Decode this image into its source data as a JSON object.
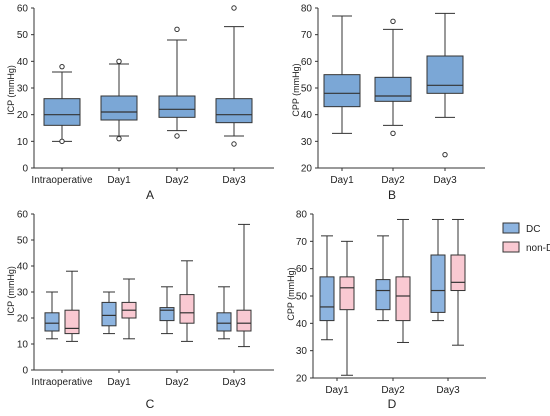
{
  "colors": {
    "box_fill": "#7ba7d6",
    "box_fill_dc": "#8db4e0",
    "box_fill_nondc": "#f9c9d2",
    "line": "#333333"
  },
  "chart_data": [
    {
      "panel": "A",
      "type": "boxplot",
      "ylabel": "ICP (mmHg)",
      "ylim": [
        0,
        60
      ],
      "yticks": [
        0,
        10,
        20,
        30,
        40,
        50,
        60
      ],
      "categories": [
        "Intraoperative",
        "Day1",
        "Day2",
        "Day3"
      ],
      "series": [
        {
          "boxes": [
            {
              "whisker_low": 10,
              "q1": 16,
              "median": 20,
              "q3": 26,
              "whisker_high": 36,
              "outliers": [
                10,
                38
              ]
            },
            {
              "whisker_low": 12,
              "q1": 18,
              "median": 21,
              "q3": 27,
              "whisker_high": 39,
              "outliers": [
                11,
                40
              ]
            },
            {
              "whisker_low": 14,
              "q1": 19,
              "median": 22,
              "q3": 27,
              "whisker_high": 48,
              "outliers": [
                12,
                52
              ]
            },
            {
              "whisker_low": 12,
              "q1": 17,
              "median": 20,
              "q3": 26,
              "whisker_high": 53,
              "outliers": [
                9,
                60
              ]
            }
          ]
        }
      ]
    },
    {
      "panel": "B",
      "type": "boxplot",
      "ylabel": "CPP (mmHg)",
      "ylim": [
        20,
        80
      ],
      "yticks": [
        20,
        30,
        40,
        50,
        60,
        70,
        80
      ],
      "categories": [
        "Day1",
        "Day2",
        "Day3"
      ],
      "series": [
        {
          "boxes": [
            {
              "whisker_low": 33,
              "q1": 43,
              "median": 48,
              "q3": 55,
              "whisker_high": 77,
              "outliers": []
            },
            {
              "whisker_low": 36,
              "q1": 45,
              "median": 47,
              "q3": 54,
              "whisker_high": 72,
              "outliers": [
                33,
                75
              ]
            },
            {
              "whisker_low": 39,
              "q1": 48,
              "median": 51,
              "q3": 62,
              "whisker_high": 78,
              "outliers": [
                25
              ]
            }
          ]
        }
      ]
    },
    {
      "panel": "C",
      "type": "boxplot",
      "ylabel": "ICP (mmHg)",
      "ylim": [
        0,
        60
      ],
      "yticks": [
        0,
        10,
        20,
        30,
        40,
        50,
        60
      ],
      "categories": [
        "Intraoperative",
        "Day1",
        "Day2",
        "Day3"
      ],
      "series": [
        {
          "name": "DC",
          "boxes": [
            {
              "whisker_low": 12,
              "q1": 15,
              "median": 18,
              "q3": 22,
              "whisker_high": 30,
              "outliers": []
            },
            {
              "whisker_low": 14,
              "q1": 17,
              "median": 21,
              "q3": 26,
              "whisker_high": 30,
              "outliers": []
            },
            {
              "whisker_low": 14,
              "q1": 19,
              "median": 23,
              "q3": 24,
              "whisker_high": 32,
              "outliers": []
            },
            {
              "whisker_low": 12,
              "q1": 15,
              "median": 18,
              "q3": 22,
              "whisker_high": 32,
              "outliers": []
            }
          ]
        },
        {
          "name": "non-DC",
          "boxes": [
            {
              "whisker_low": 11,
              "q1": 14,
              "median": 16,
              "q3": 23,
              "whisker_high": 38,
              "outliers": []
            },
            {
              "whisker_low": 12,
              "q1": 20,
              "median": 23,
              "q3": 26,
              "whisker_high": 35,
              "outliers": []
            },
            {
              "whisker_low": 11,
              "q1": 18,
              "median": 22,
              "q3": 29,
              "whisker_high": 42,
              "outliers": []
            },
            {
              "whisker_low": 9,
              "q1": 15,
              "median": 18,
              "q3": 23,
              "whisker_high": 56,
              "outliers": []
            }
          ]
        }
      ]
    },
    {
      "panel": "D",
      "type": "boxplot",
      "ylabel": "CPP (mmHg)",
      "ylim": [
        20,
        80
      ],
      "yticks": [
        20,
        30,
        40,
        50,
        60,
        70,
        80
      ],
      "categories": [
        "Day1",
        "Day2",
        "Day3"
      ],
      "legend": {
        "position": "top-right",
        "entries": [
          "DC",
          "non-DC"
        ]
      },
      "series": [
        {
          "name": "DC",
          "boxes": [
            {
              "whisker_low": 34,
              "q1": 41,
              "median": 46,
              "q3": 57,
              "whisker_high": 72,
              "outliers": []
            },
            {
              "whisker_low": 41,
              "q1": 45,
              "median": 52,
              "q3": 56,
              "whisker_high": 72,
              "outliers": []
            },
            {
              "whisker_low": 41,
              "q1": 44,
              "median": 52,
              "q3": 65,
              "whisker_high": 78,
              "outliers": []
            }
          ]
        },
        {
          "name": "non-DC",
          "boxes": [
            {
              "whisker_low": 21,
              "q1": 45,
              "median": 53,
              "q3": 57,
              "whisker_high": 70,
              "outliers": []
            },
            {
              "whisker_low": 33,
              "q1": 41,
              "median": 50,
              "q3": 57,
              "whisker_high": 78,
              "outliers": []
            },
            {
              "whisker_low": 32,
              "q1": 52,
              "median": 55,
              "q3": 65,
              "whisker_high": 78,
              "outliers": []
            }
          ]
        }
      ]
    }
  ]
}
